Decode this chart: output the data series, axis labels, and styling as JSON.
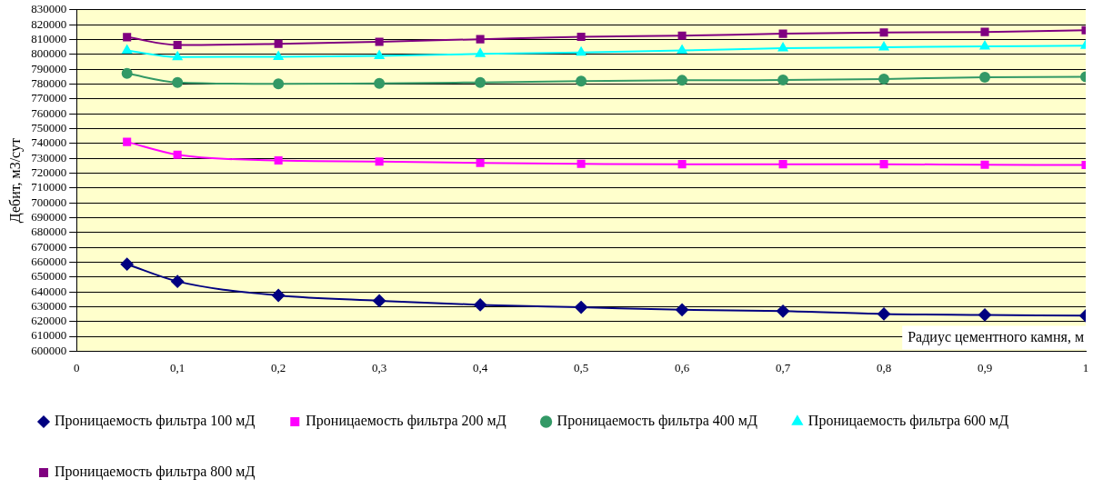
{
  "chart_data": {
    "type": "line",
    "xlabel": "Радиус цементного камня, м",
    "ylabel": "Дебит, м3/сут",
    "x": [
      0.05,
      0.1,
      0.2,
      0.3,
      0.4,
      0.5,
      0.6,
      0.7,
      0.8,
      0.9,
      1
    ],
    "series": [
      {
        "name": "Проницаемость фильтра 100 мД",
        "color": "#000080",
        "marker": "diamond",
        "values": [
          658600,
          647000,
          637600,
          634000,
          631200,
          629600,
          627900,
          627000,
          625100,
          624500,
          623900
        ]
      },
      {
        "name": "Проницаемость фильтра 200 мД",
        "color": "#ff00ff",
        "marker": "square",
        "values": [
          741000,
          732400,
          728500,
          727800,
          726800,
          726200,
          726000,
          726000,
          726000,
          725600,
          725500
        ]
      },
      {
        "name": "Проницаемость фильтра 400 мД",
        "color": "#339966",
        "marker": "circle",
        "values": [
          787100,
          781100,
          780100,
          780500,
          781100,
          781900,
          782500,
          782700,
          783400,
          784600,
          784800
        ]
      },
      {
        "name": "Проницаемость фильтра 600 мД",
        "color": "#00ffff",
        "marker": "triangle",
        "values": [
          802600,
          798200,
          798400,
          799000,
          800300,
          801300,
          802600,
          804200,
          804800,
          805400,
          805800
        ]
      },
      {
        "name": "Проницаемость фильтра 800 мД",
        "color": "#800080",
        "marker": "square",
        "values": [
          811600,
          806300,
          807100,
          808500,
          810200,
          811800,
          812600,
          813900,
          814700,
          815100,
          816200
        ]
      }
    ],
    "xlim": [
      0,
      1
    ],
    "xticks": [
      0,
      {
        "value": 0.1,
        "label": "0,1"
      },
      {
        "value": 0.2,
        "label": "0,2"
      },
      {
        "value": 0.3,
        "label": "0,3"
      },
      {
        "value": 0.4,
        "label": "0,4"
      },
      {
        "value": 0.5,
        "label": "0,5"
      },
      {
        "value": 0.6,
        "label": "0,6"
      },
      {
        "value": 0.7,
        "label": "0,7"
      },
      {
        "value": 0.8,
        "label": "0,8"
      },
      {
        "value": 0.9,
        "label": "0,9"
      },
      1
    ],
    "ylim": [
      600000,
      830000
    ],
    "yticks": [
      600000,
      610000,
      620000,
      630000,
      640000,
      650000,
      660000,
      670000,
      680000,
      690000,
      700000,
      710000,
      720000,
      730000,
      740000,
      750000,
      760000,
      770000,
      780000,
      790000,
      800000,
      810000,
      820000,
      830000
    ],
    "grid": "y",
    "legend": "bottom"
  }
}
